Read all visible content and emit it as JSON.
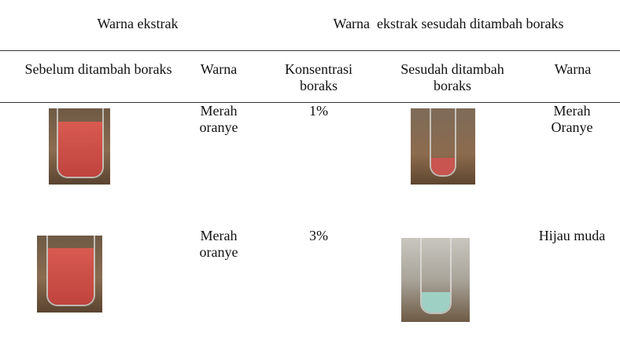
{
  "table": {
    "groups": [
      "Warna ekstrak",
      "Warna  ekstrak sesudah ditambah boraks"
    ],
    "columns": [
      "Sebelum ditambah boraks",
      "Warna",
      "Konsentrasi boraks",
      "Sesudah ditambah boraks",
      "Warna"
    ],
    "rows": [
      {
        "warna_sebelum": "Merah oranye",
        "konsentrasi": "1%",
        "warna_sesudah": "Merah Oranye"
      },
      {
        "warna_sebelum": "Merah oranye",
        "konsentrasi": "3%",
        "warna_sesudah": "Hijau muda"
      }
    ]
  }
}
